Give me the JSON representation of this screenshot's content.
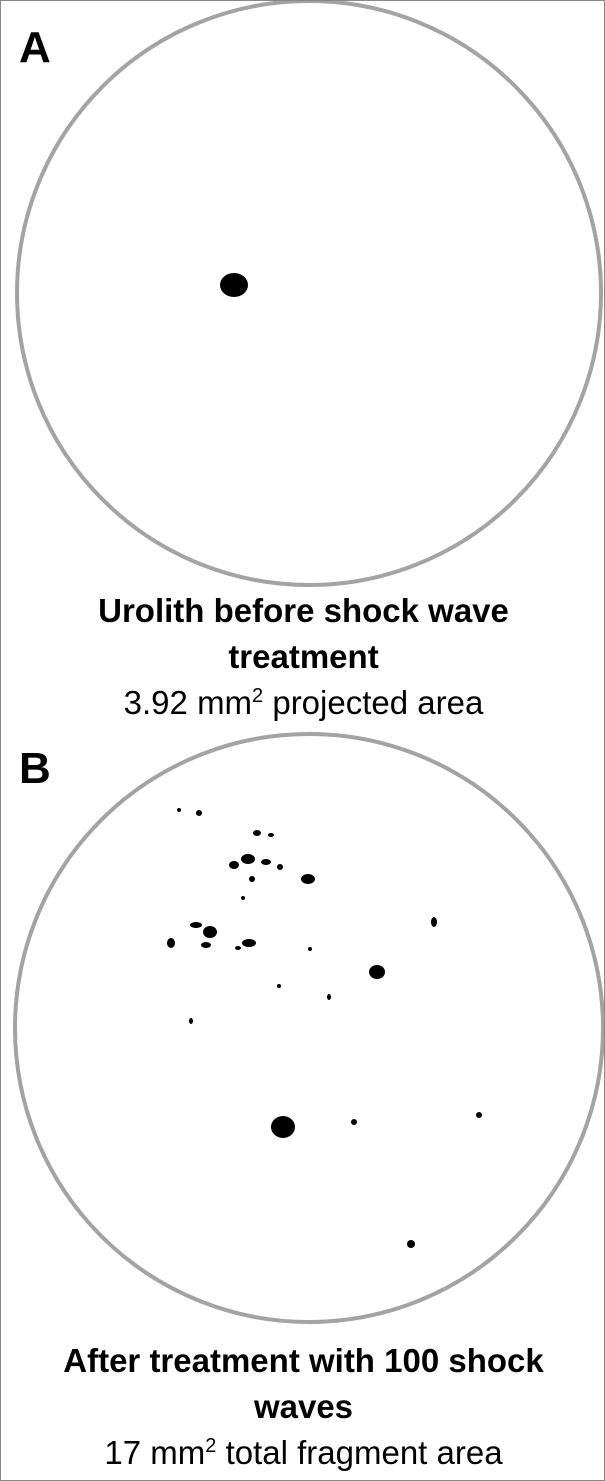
{
  "panels": [
    {
      "label": "A",
      "title": "Urolith before shock wave treatment",
      "area_value": "3.92",
      "area_unit": "mm",
      "unit_power": "2",
      "area_text": "projected area"
    },
    {
      "label": "B",
      "title": "After treatment with 100 shock waves",
      "area_value": "17",
      "area_unit": "mm",
      "unit_power": "2",
      "area_text": "total fragment area"
    }
  ]
}
